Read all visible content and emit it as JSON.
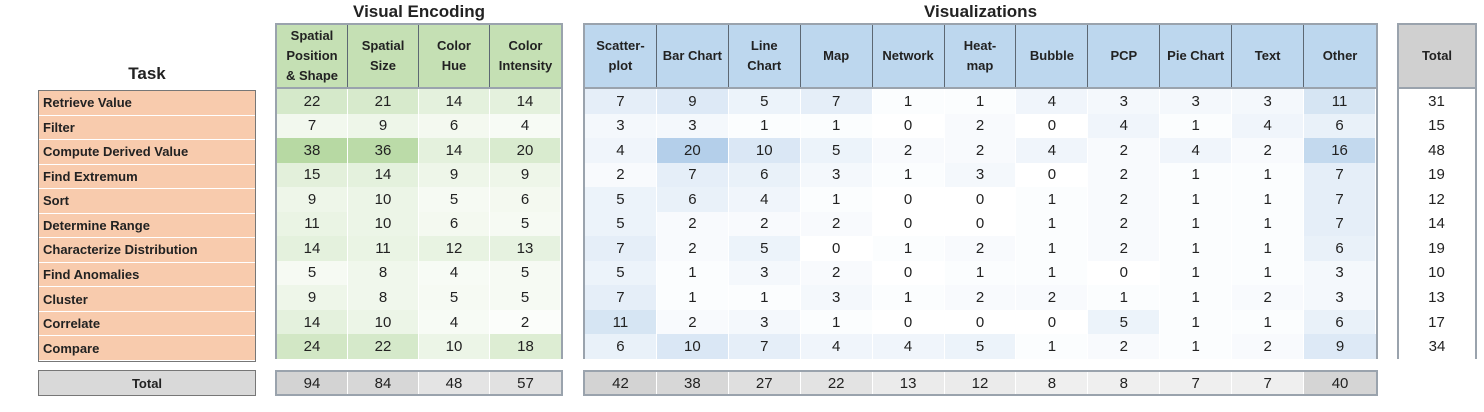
{
  "chart_data": {
    "type": "table",
    "titles": {
      "task": "Task",
      "encoding": "Visual Encoding",
      "visualizations": "Visualizations",
      "total": "Total"
    },
    "tasks": [
      "Retrieve Value",
      "Filter",
      "Compute Derived Value",
      "Find Extremum",
      "Sort",
      "Determine Range",
      "Characterize Distribution",
      "Find Anomalies",
      "Cluster",
      "Correlate",
      "Compare"
    ],
    "total_row_label": "Total",
    "encoding": {
      "columns": [
        "Spatial\nPosition\n& Shape",
        "Spatial\nSize",
        "Color\nHue",
        "Color\nIntensity"
      ],
      "values": [
        [
          22,
          21,
          14,
          14
        ],
        [
          7,
          9,
          6,
          4
        ],
        [
          38,
          36,
          14,
          20
        ],
        [
          15,
          14,
          9,
          9
        ],
        [
          9,
          10,
          5,
          6
        ],
        [
          11,
          10,
          6,
          5
        ],
        [
          14,
          11,
          12,
          13
        ],
        [
          5,
          8,
          4,
          5
        ],
        [
          9,
          8,
          5,
          5
        ],
        [
          14,
          10,
          4,
          2
        ],
        [
          24,
          22,
          10,
          18
        ]
      ],
      "totals": [
        94,
        84,
        48,
        57
      ]
    },
    "visualizations": {
      "columns": [
        "Scatter-\nplot",
        "Bar Chart",
        "Line\nChart",
        "Map",
        "Network",
        "Heat-\nmap",
        "Bubble",
        "PCP",
        "Pie Chart",
        "Text",
        "Other"
      ],
      "values": [
        [
          7,
          9,
          5,
          7,
          1,
          1,
          4,
          3,
          3,
          3,
          11
        ],
        [
          3,
          3,
          1,
          1,
          0,
          2,
          0,
          4,
          1,
          4,
          6
        ],
        [
          4,
          20,
          10,
          5,
          2,
          2,
          4,
          2,
          4,
          2,
          16
        ],
        [
          2,
          7,
          6,
          3,
          1,
          3,
          0,
          2,
          1,
          1,
          7
        ],
        [
          5,
          6,
          4,
          1,
          0,
          0,
          1,
          2,
          1,
          1,
          7
        ],
        [
          5,
          2,
          2,
          2,
          0,
          0,
          1,
          2,
          1,
          1,
          7
        ],
        [
          7,
          2,
          5,
          0,
          1,
          2,
          1,
          2,
          1,
          1,
          6
        ],
        [
          5,
          1,
          3,
          2,
          0,
          1,
          1,
          0,
          1,
          1,
          3
        ],
        [
          7,
          1,
          1,
          3,
          1,
          2,
          2,
          1,
          1,
          2,
          3
        ],
        [
          11,
          2,
          3,
          1,
          0,
          0,
          0,
          5,
          1,
          1,
          6
        ],
        [
          6,
          10,
          7,
          4,
          4,
          5,
          1,
          2,
          1,
          2,
          9
        ]
      ],
      "totals": [
        42,
        38,
        27,
        22,
        13,
        12,
        8,
        8,
        7,
        7,
        40
      ]
    },
    "total": {
      "column": "Total",
      "values": [
        31,
        15,
        48,
        19,
        12,
        14,
        19,
        10,
        13,
        17,
        34
      ]
    },
    "colors": {
      "green_max": "#b7d9a3",
      "blue_max": "#b4cfea",
      "gray_max": "#bdbdbd",
      "task_fill": "#f8cbad",
      "enc_header": "#c5e0b4",
      "vis_header": "#bdd7ee",
      "total_header": "#d0d0d0"
    }
  }
}
